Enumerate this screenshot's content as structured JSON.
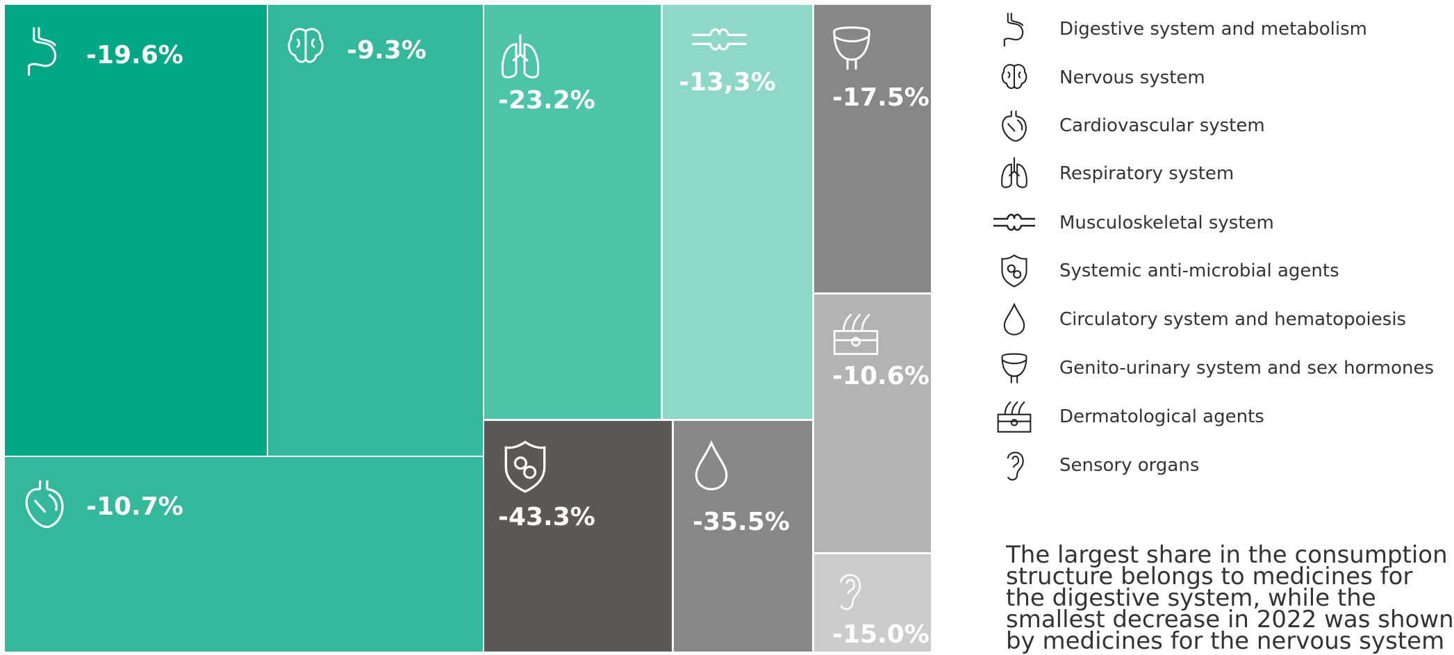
{
  "tiles": [
    {
      "label": "-19.6%"
    },
    {
      "label": "-9.3%"
    },
    {
      "label": "-23.2%"
    },
    {
      "label": "-13,3%"
    },
    {
      "label": "-17.5%"
    },
    {
      "label": "-10.6%"
    },
    {
      "label": "-15.0%"
    },
    {
      "label": "-10.7%"
    },
    {
      "label": "-43.3%"
    },
    {
      "label": "-35.5%"
    }
  ],
  "legend": [
    "Digestive system and metabolism",
    "Nervous system",
    "Cardiovascular system",
    "Respiratory system",
    "Musculoskeletal system",
    "Systemic anti-microbial agents",
    "Circulatory system and hematopoiesis",
    "Genito-urinary system and sex hormones",
    "Dermatological agents",
    "Sensory organs"
  ],
  "note": {
    "lines": [
      "The largest share in the consumption",
      "structure belongs to medicines for",
      "the digestive system, while the",
      "smallest decrease in 2022 was shown",
      "by medicines for the nervous system"
    ]
  }
}
